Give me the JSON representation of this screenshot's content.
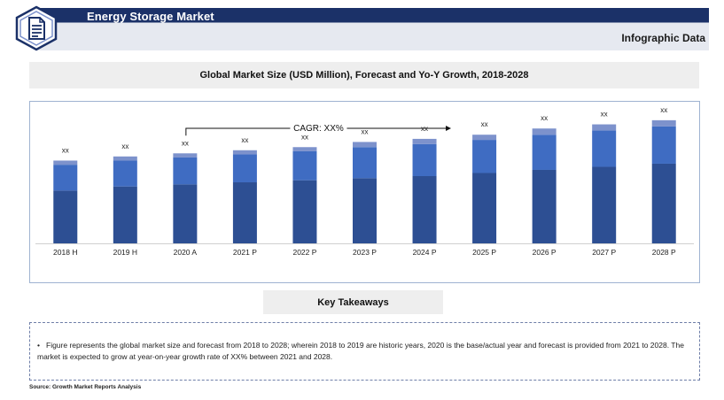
{
  "header": {
    "title": "Energy Storage Market",
    "subtitle": "Infographic Data",
    "logo_icon": "document-icon"
  },
  "chart_box": {
    "title": "Global Market Size (USD Million), Forecast and Yo-Y Growth, 2018-2028"
  },
  "chart_data": {
    "type": "bar",
    "stacked": true,
    "title": "Global Market Size (USD Million), Forecast and Yo-Y Growth, 2018-2028",
    "categories": [
      "2018 H",
      "2019 H",
      "2020 A",
      "2021 P",
      "2022 P",
      "2023 P",
      "2024 P",
      "2025 P",
      "2026 P",
      "2027 P",
      "2028 P"
    ],
    "series": [
      {
        "color": "#2d4f93",
        "values": [
          51,
          55,
          57,
          59,
          61,
          63,
          65,
          68,
          71,
          74,
          77
        ]
      },
      {
        "color": "#3f6cc2",
        "values": [
          25,
          25,
          26,
          27,
          28,
          30,
          31,
          32,
          34,
          35,
          36
        ]
      },
      {
        "color": "#7d92cc",
        "values": [
          4,
          4,
          4,
          4,
          4,
          5,
          5,
          5,
          6,
          6,
          6
        ]
      }
    ],
    "data_labels": [
      "xx",
      "xx",
      "xx",
      "xx",
      "xx",
      "xx",
      "xx",
      "xx",
      "xx",
      "xx",
      "xx"
    ],
    "annotation": {
      "text": "CAGR: XX%",
      "from_category": "2020 A",
      "to_category": "2024 P"
    },
    "ylim": [
      0,
      130
    ],
    "y_axis_visible": false,
    "grid": false,
    "legend": "none"
  },
  "key_takeaways": {
    "title": "Key Takeaways",
    "bullet_char": "•",
    "text": "Figure represents the global market size and forecast from 2018 to 2028; wherein 2018 to 2019 are historic years, 2020 is the base/actual year and forecast is provided from 2021 to 2028. The market is expected to grow at year-on-year growth rate of XX% between 2021 and 2028."
  },
  "source": "Source: Growth Market Reports Analysis"
}
